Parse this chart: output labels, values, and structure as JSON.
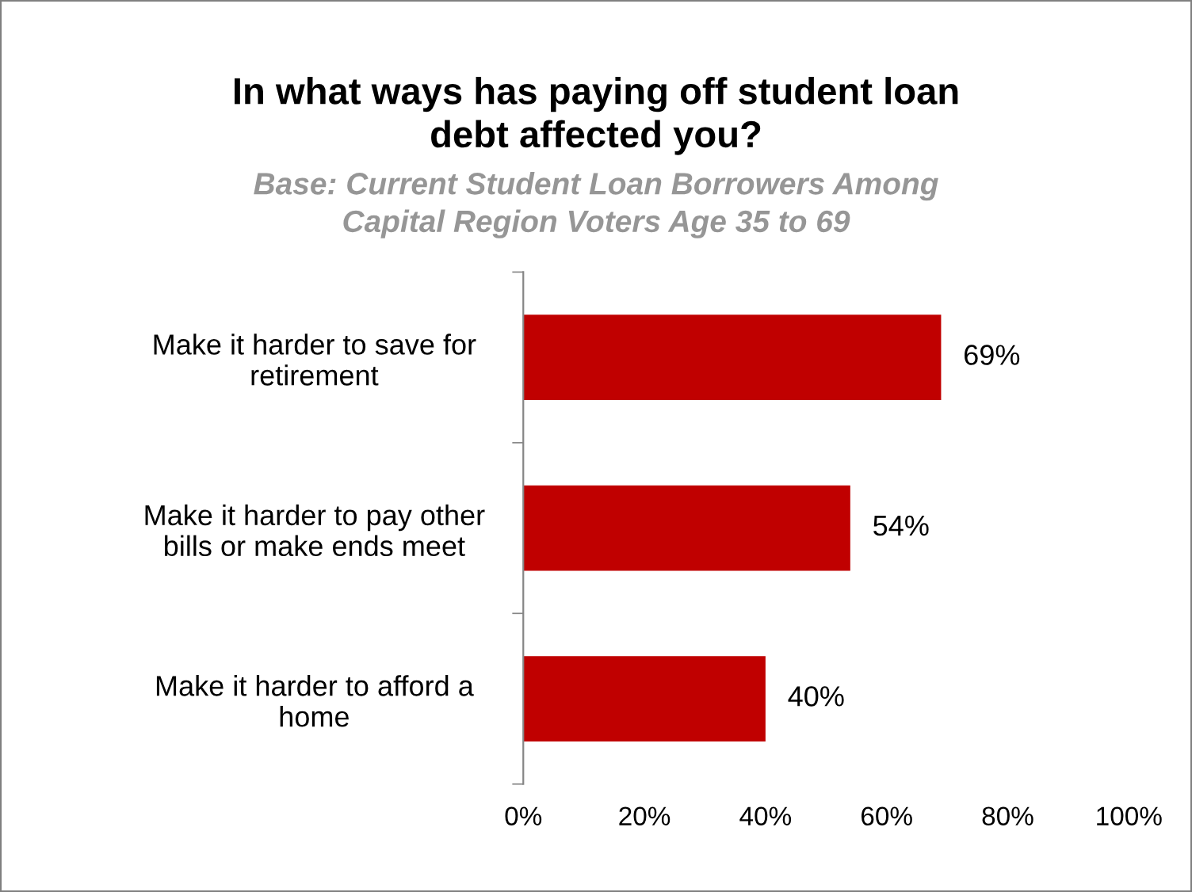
{
  "chart_data": {
    "type": "bar",
    "orientation": "horizontal",
    "title": "In what ways has paying off student loan\ndebt affected you?",
    "subtitle": "Base: Current Student Loan Borrowers Among\nCapital Region Voters Age 35 to 69",
    "categories": [
      "Make it harder to save for\nretirement",
      "Make it harder to pay other\nbills or make ends meet",
      "Make it harder to afford a\nhome"
    ],
    "values": [
      69,
      54,
      40
    ],
    "value_labels": [
      "69%",
      "54%",
      "40%"
    ],
    "color": "#c00000",
    "xlim": [
      0,
      100
    ],
    "xticks": [
      {
        "value": 0,
        "label": "0%"
      },
      {
        "value": 20,
        "label": "20%"
      },
      {
        "value": 40,
        "label": "40%"
      },
      {
        "value": 60,
        "label": "60%"
      },
      {
        "value": 80,
        "label": "80%"
      },
      {
        "value": 100,
        "label": "100%"
      }
    ],
    "grid": false,
    "legend": false
  }
}
